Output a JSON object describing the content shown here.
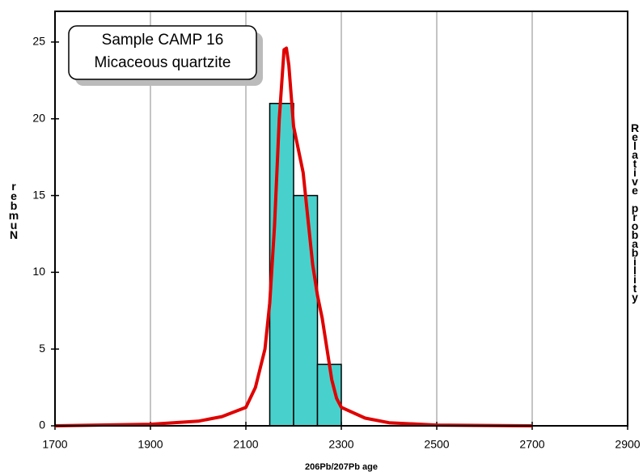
{
  "chart_data": {
    "type": "histogram",
    "annotation": [
      "Sample CAMP 16",
      "Micaceous quartzite"
    ],
    "x_label": "206Pb/207Pb age",
    "y_label": "Number",
    "y2_label": "Relative probability",
    "bins": [
      2150,
      2200,
      2250,
      2300
    ],
    "values": [
      21,
      15,
      4
    ],
    "color": "#48d1cc",
    "curve": {
      "color": "#e00000",
      "x": [
        1700,
        1900,
        2000,
        2050,
        2100,
        2120,
        2140,
        2150,
        2160,
        2170,
        2180,
        2185,
        2190,
        2200,
        2210,
        2220,
        2230,
        2240,
        2250,
        2260,
        2270,
        2280,
        2290,
        2300,
        2350,
        2400,
        2500,
        2700
      ],
      "values": [
        0,
        0.1,
        0.3,
        0.6,
        1.2,
        2.5,
        5,
        8,
        13,
        20,
        24.5,
        24.6,
        23.5,
        19.5,
        18,
        16.5,
        13.5,
        10.5,
        8.5,
        7,
        5,
        3,
        1.8,
        1.2,
        0.5,
        0.2,
        0.05,
        0
      ]
    },
    "xlim": [
      1700,
      2900
    ],
    "xticks": [
      1700,
      1900,
      2100,
      2300,
      2500,
      2700,
      2900
    ],
    "ylim": [
      0,
      27
    ],
    "yticks": [
      0,
      5,
      10,
      15,
      20,
      25
    ],
    "grid": true
  }
}
